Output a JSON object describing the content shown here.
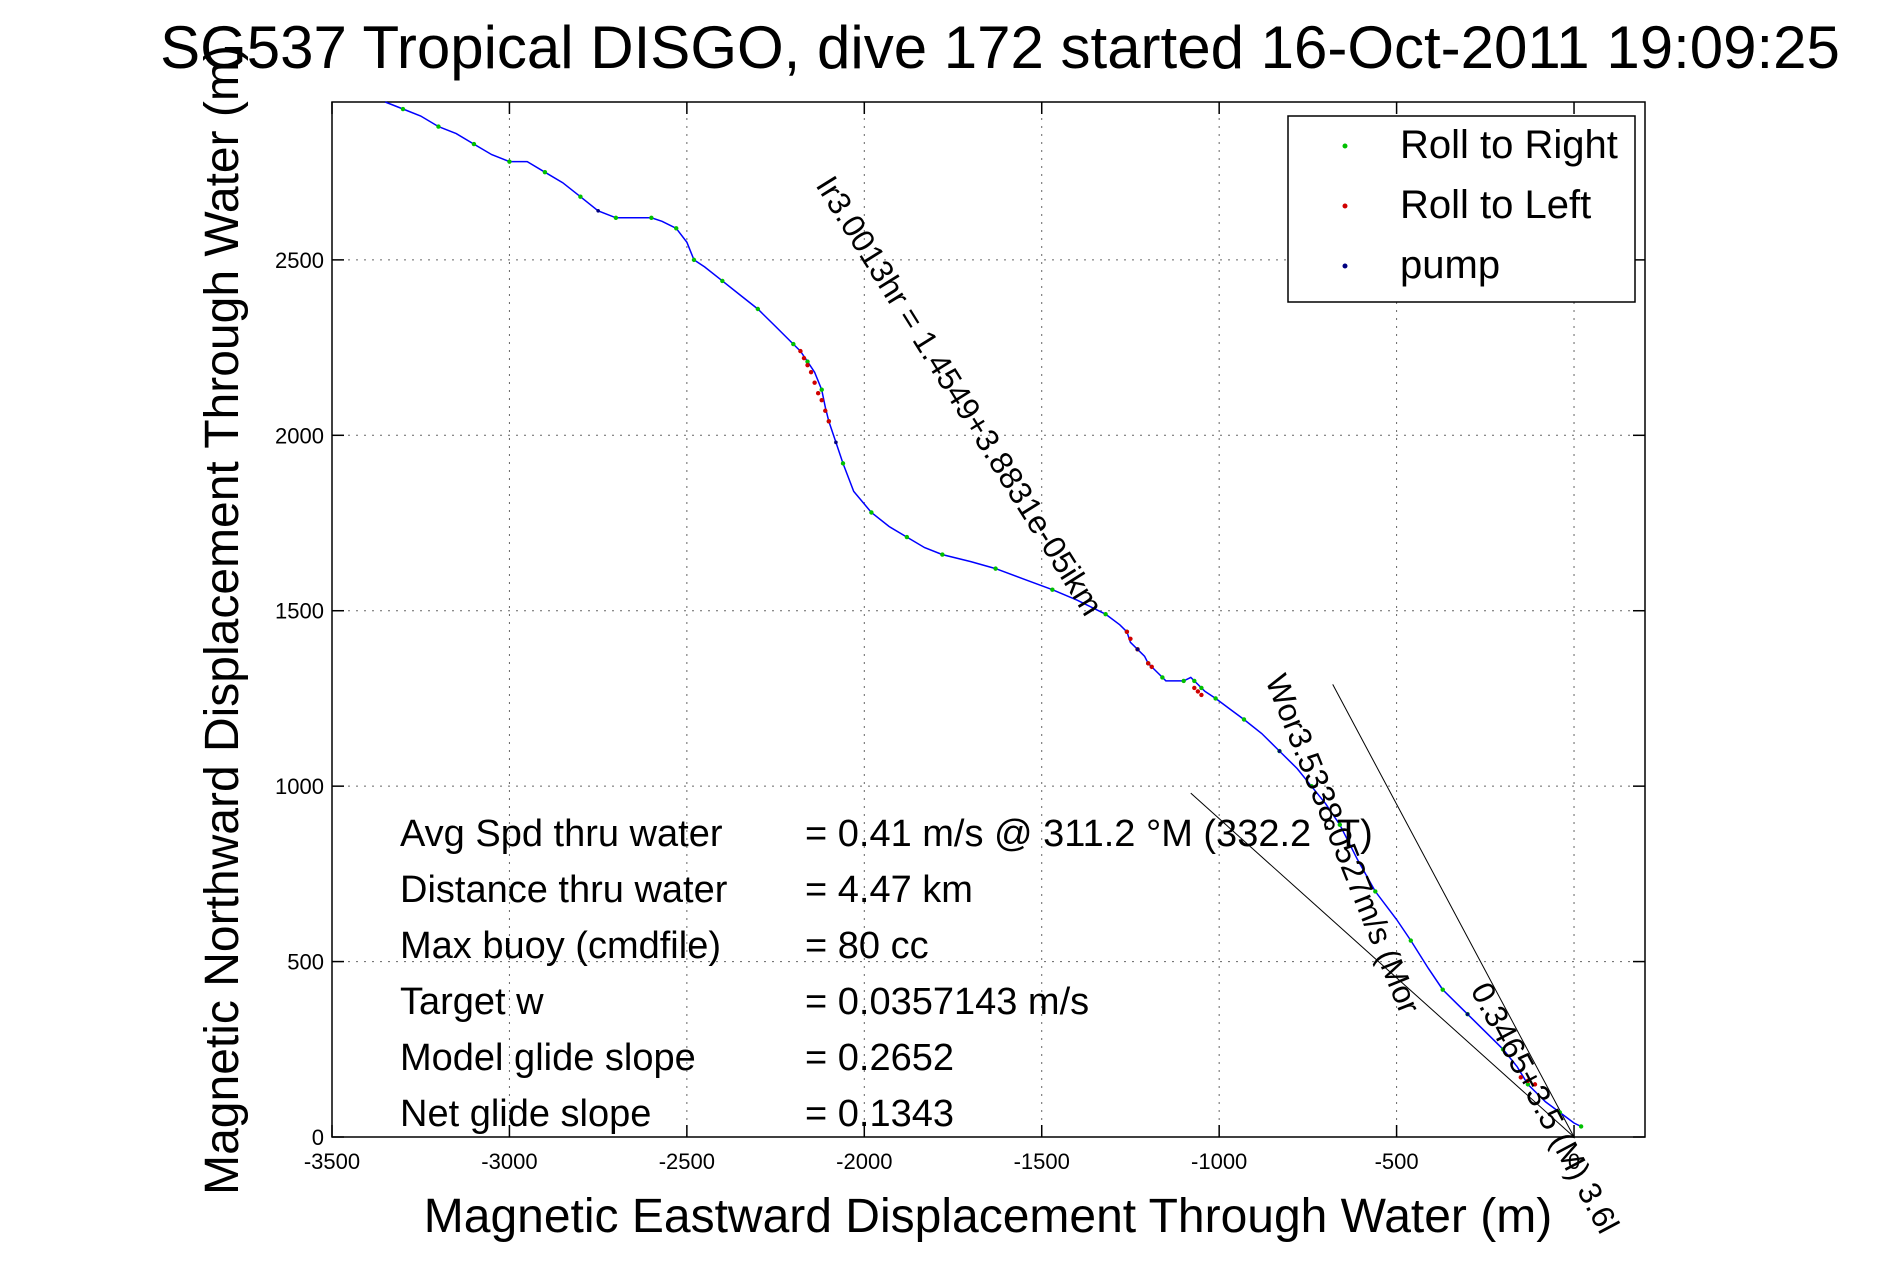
{
  "chart_data": {
    "type": "line",
    "title": "SG537 Tropical DISGO, dive 172 started 16-Oct-2011 19:09:25",
    "xlabel": "Magnetic Eastward Displacement Through Water (m)",
    "ylabel": "Magnetic Northward Displacement Through Water (m)",
    "xlim": [
      -3500,
      200
    ],
    "ylim": [
      0,
      2950
    ],
    "x_ticks": [
      -3500,
      -3000,
      -2500,
      -2000,
      -1500,
      -1000,
      -500,
      0
    ],
    "y_ticks": [
      0,
      500,
      1000,
      1500,
      2000,
      2500
    ],
    "grid": true,
    "legend_position": "top-right",
    "legend": [
      {
        "label": "Roll to Right",
        "color": "#00c000"
      },
      {
        "label": "Roll to Left",
        "color": "#d00000"
      },
      {
        "label": "pump",
        "color": "#000080"
      }
    ],
    "series": [
      {
        "name": "track",
        "color": "#0000ff",
        "x": [
          20,
          0,
          -40,
          -80,
          -130,
          -160,
          -200,
          -250,
          -300,
          -330,
          -370,
          -410,
          -460,
          -500,
          -560,
          -610,
          -660,
          -700,
          -740,
          -780,
          -830,
          -880,
          -930,
          -970,
          -1010,
          -1040,
          -1050,
          -1060,
          -1070,
          -1080,
          -1100,
          -1150,
          -1160,
          -1180,
          -1200,
          -1210,
          -1230,
          -1250,
          -1260,
          -1280,
          -1320,
          -1400,
          -1470,
          -1550,
          -1630,
          -1700,
          -1780,
          -1830,
          -1880,
          -1930,
          -1980,
          -2030,
          -2060,
          -2080,
          -2100,
          -2110,
          -2120,
          -2140,
          -2160,
          -2180,
          -2200,
          -2250,
          -2300,
          -2350,
          -2400,
          -2450,
          -2480,
          -2500,
          -2530,
          -2570,
          -2600,
          -2650,
          -2700,
          -2750,
          -2800,
          -2850,
          -2900,
          -2950,
          -3000,
          -3050,
          -3100,
          -3150,
          -3200,
          -3250,
          -3300,
          -3350
        ],
        "y": [
          30,
          40,
          70,
          100,
          150,
          200,
          250,
          300,
          350,
          380,
          420,
          480,
          560,
          620,
          700,
          790,
          890,
          950,
          1000,
          1050,
          1100,
          1150,
          1190,
          1220,
          1250,
          1270,
          1280,
          1290,
          1300,
          1310,
          1300,
          1300,
          1310,
          1330,
          1350,
          1370,
          1390,
          1410,
          1440,
          1460,
          1490,
          1530,
          1560,
          1590,
          1620,
          1640,
          1660,
          1680,
          1710,
          1740,
          1780,
          1840,
          1920,
          1980,
          2040,
          2080,
          2130,
          2180,
          2210,
          2240,
          2260,
          2310,
          2360,
          2400,
          2440,
          2480,
          2500,
          2550,
          2590,
          2610,
          2620,
          2620,
          2620,
          2640,
          2680,
          2720,
          2750,
          2780,
          2780,
          2800,
          2830,
          2860,
          2880,
          2910,
          2930,
          2950
        ]
      },
      {
        "name": "Roll to Left",
        "color": "#d00000",
        "x": [
          -2180,
          -2170,
          -2160,
          -2150,
          -2140,
          -2130,
          -2120,
          -2110,
          -2100,
          -1260,
          -1250,
          -1230,
          -1200,
          -1190,
          -1070,
          -1060,
          -1050,
          -150,
          -130,
          -110
        ],
        "y": [
          2240,
          2220,
          2200,
          2180,
          2150,
          2120,
          2100,
          2070,
          2040,
          1440,
          1420,
          1390,
          1350,
          1340,
          1280,
          1270,
          1260,
          170,
          160,
          150
        ]
      }
    ],
    "guide_lines": [
      {
        "from": [
          0,
          0
        ],
        "to": [
          -680,
          1290
        ]
      },
      {
        "from": [
          0,
          0
        ],
        "to": [
          -1080,
          980
        ]
      }
    ],
    "annotations": {
      "slope_line_1": "Ir3.0013hr = 1.4549+3.8831e-05ikm",
      "slope_line_2": "Wor3.5338.0527m/s (Mor",
      "slope_line_3": "0.3465+3.5 (M) 3.6l"
    },
    "stats": [
      {
        "label": "Avg Spd thru water",
        "value": "=  0.41 m/s @ 311.2 °M (332.2 °T)"
      },
      {
        "label": "Distance thru water",
        "value": "=  4.47 km"
      },
      {
        "label": "Max buoy (cmdfile)",
        "value": "= 80 cc"
      },
      {
        "label": "Target w",
        "value": "= 0.0357143 m/s"
      },
      {
        "label": "Model glide slope",
        "value": "= 0.2652"
      },
      {
        "label": "Net glide slope",
        "value": "= 0.1343"
      }
    ]
  }
}
